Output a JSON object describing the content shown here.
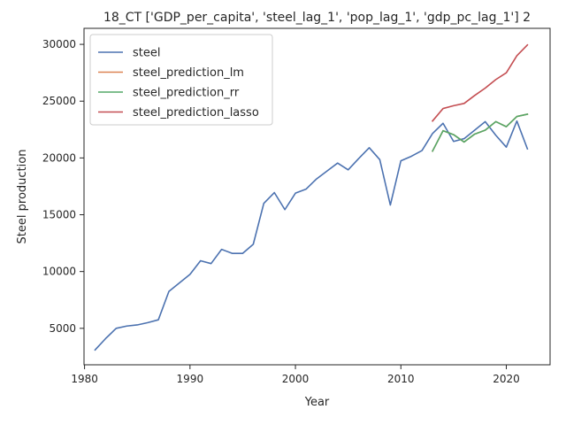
{
  "chart_data": {
    "type": "line",
    "title": "18_CT ['GDP_per_capita', 'steel_lag_1', 'pop_lag_1', 'gdp_pc_lag_1'] 2",
    "xlabel": "Year",
    "ylabel": "Steel production",
    "xlim": [
      1979.95,
      2024.15
    ],
    "ylim": [
      1790,
      31410
    ],
    "xticks": [
      1980,
      1990,
      2000,
      2010,
      2020
    ],
    "yticks": [
      5000,
      10000,
      15000,
      20000,
      25000,
      30000
    ],
    "grid": false,
    "legend_position": "top-left",
    "series": [
      {
        "name": "steel",
        "color": "#4c72b0",
        "x": [
          1981,
          1982,
          1983,
          1984,
          1985,
          1986,
          1987,
          1988,
          1989,
          1990,
          1991,
          1992,
          1993,
          1994,
          1995,
          1996,
          1997,
          1998,
          1999,
          2000,
          2001,
          2002,
          2003,
          2004,
          2005,
          2006,
          2007,
          2008,
          2009,
          2010,
          2011,
          2012,
          2013,
          2014,
          2015,
          2016,
          2017,
          2018,
          2019,
          2020,
          2021,
          2022
        ],
        "y": [
          3100,
          4100,
          5000,
          5200,
          5300,
          5500,
          5750,
          8250,
          9000,
          9750,
          10950,
          10700,
          11950,
          11600,
          11600,
          12400,
          16000,
          16950,
          15450,
          16900,
          17250,
          18150,
          18850,
          19550,
          18950,
          19950,
          20900,
          19850,
          15850,
          19750,
          20150,
          20650,
          22150,
          23050,
          21450,
          21700,
          22450,
          23200,
          22000,
          20950,
          23250,
          20800
        ]
      },
      {
        "name": "steel_prediction_lm",
        "color": "#dd8452",
        "x": [
          2013,
          2014,
          2015,
          2016,
          2017,
          2018,
          2019,
          2020,
          2021,
          2022
        ],
        "y": [
          20600,
          22400,
          22050,
          21400,
          22100,
          22450,
          23200,
          22750,
          23650,
          23850
        ]
      },
      {
        "name": "steel_prediction_rr",
        "color": "#55a868",
        "x": [
          2013,
          2014,
          2015,
          2016,
          2017,
          2018,
          2019,
          2020,
          2021,
          2022
        ],
        "y": [
          20600,
          22400,
          22050,
          21400,
          22100,
          22450,
          23200,
          22750,
          23650,
          23850
        ]
      },
      {
        "name": "steel_prediction_lasso",
        "color": "#c44e52",
        "x": [
          2013,
          2014,
          2015,
          2016,
          2017,
          2018,
          2019,
          2020,
          2021,
          2022
        ],
        "y": [
          23250,
          24350,
          24600,
          24800,
          25500,
          26150,
          26900,
          27500,
          29000,
          29950
        ]
      }
    ]
  }
}
